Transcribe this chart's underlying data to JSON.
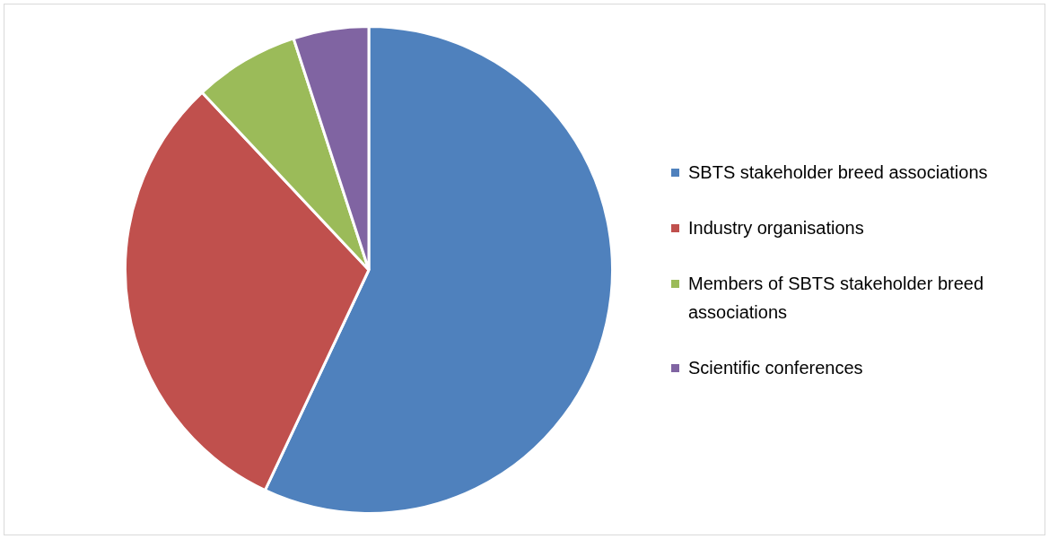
{
  "chart_data": {
    "type": "pie",
    "categories": [
      "SBTS stakeholder breed associations",
      "Industry organisations",
      "Members of SBTS stakeholder breed associations",
      "Scientific conferences"
    ],
    "values": [
      57,
      31,
      7,
      5
    ],
    "colors": [
      "#4f81bd",
      "#c0504d",
      "#9bbb59",
      "#8064a2"
    ],
    "legend": "right"
  }
}
